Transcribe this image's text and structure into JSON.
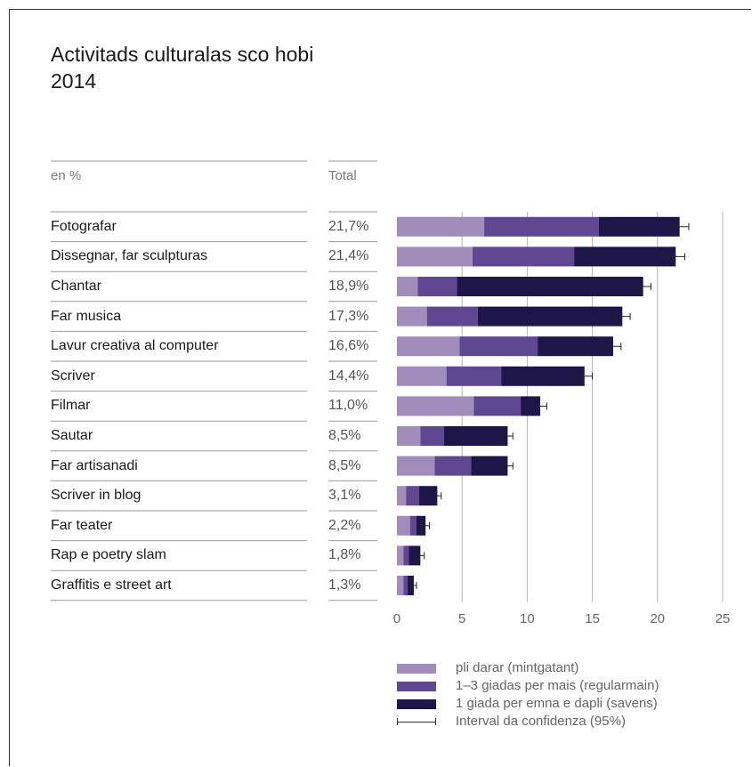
{
  "chart_data": {
    "type": "bar",
    "title_line1": "Activitads culturalas sco hobi",
    "title_line2": "2014",
    "unit_header": "en %",
    "total_header": "Total",
    "categories": [
      "Fotografar",
      "Dissegnar, far sculpturas",
      "Chantar",
      "Far musica",
      "Lavur creativa al computer",
      "Scriver",
      "Filmar",
      "Sautar",
      "Far artisanadi",
      "Scriver in blog",
      "Far teater",
      "Rap e poetry slam",
      "Graffitis e street art"
    ],
    "totals": [
      "21,7%",
      "21,4%",
      "18,9%",
      "17,3%",
      "16,6%",
      "14,4%",
      "11,0%",
      "8,5%",
      "8,5%",
      "3,1%",
      "2,2%",
      "1,8%",
      "1,3%"
    ],
    "series": [
      {
        "name": "pli darar (mintgatant)",
        "color": "#a28cbc",
        "values": [
          6.7,
          5.8,
          1.6,
          2.3,
          4.8,
          3.8,
          5.9,
          1.8,
          2.9,
          0.7,
          1.0,
          0.5,
          0.5
        ]
      },
      {
        "name": "1–3 giadas per mais (regularmain)",
        "color": "#5f4891",
        "values": [
          8.8,
          7.8,
          3.0,
          3.9,
          6.0,
          4.2,
          3.6,
          1.8,
          2.8,
          1.0,
          0.5,
          0.4,
          0.3
        ]
      },
      {
        "name": "1 giada per emna e dapli (savens)",
        "color": "#1e1648",
        "values": [
          6.2,
          7.8,
          14.3,
          11.1,
          5.8,
          6.4,
          1.5,
          4.9,
          2.8,
          1.4,
          0.7,
          0.9,
          0.5
        ]
      }
    ],
    "ci": [
      0.7,
      0.7,
      0.6,
      0.6,
      0.6,
      0.6,
      0.5,
      0.4,
      0.4,
      0.3,
      0.3,
      0.3,
      0.2
    ],
    "ci_label": "Interval da confidenza (95%)",
    "xlim": [
      0,
      25
    ],
    "xticks": [
      "0",
      "5",
      "10",
      "15",
      "20",
      "25"
    ],
    "grid": true
  }
}
